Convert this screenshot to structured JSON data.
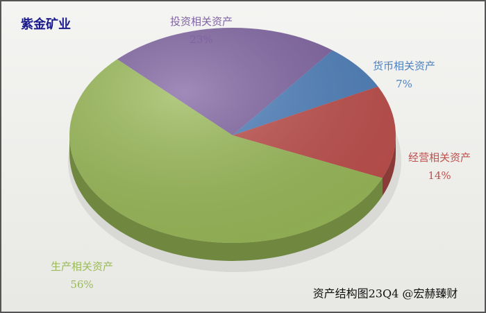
{
  "chart_data": {
    "type": "pie3d",
    "title": "紫金矿业",
    "categories": [
      "投资相关资产",
      "货币相关资产",
      "经营相关资产",
      "生产相关资产"
    ],
    "values": [
      23,
      7,
      14,
      56
    ],
    "value_labels": [
      "23%",
      "7%",
      "14%",
      "56%"
    ],
    "colors": [
      "#8064a2",
      "#4f81bd",
      "#c0504d",
      "#9bbb59"
    ],
    "annotation": "资产结构图23Q4 @宏赫臻财"
  }
}
